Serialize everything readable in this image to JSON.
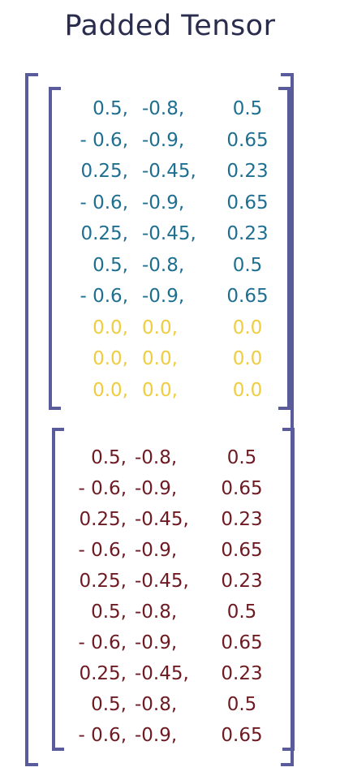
{
  "title": "Padded Tensor",
  "colors": {
    "bracket": "#5a5b9b",
    "title": "#2a2c4e",
    "tensor1_data": "#1f6f91",
    "padding": "#f0cc3f",
    "tensor2_data": "#6e1a22"
  },
  "tensor1": {
    "rows": [
      [
        "0.5,",
        "-0.8,",
        "0.5"
      ],
      [
        "- 0.6,",
        "-0.9,",
        "0.65"
      ],
      [
        "0.25,",
        "-0.45,",
        "0.23"
      ],
      [
        "- 0.6,",
        "-0.9,",
        "0.65"
      ],
      [
        "0.25,",
        "-0.45,",
        "0.23"
      ],
      [
        "0.5,",
        "-0.8,",
        "0.5"
      ],
      [
        "- 0.6,",
        "-0.9,",
        "0.65"
      ],
      [
        "0.0,",
        "0.0,",
        "0.0"
      ],
      [
        "0.0,",
        "0.0,",
        "0.0"
      ],
      [
        "0.0,",
        "0.0,",
        "0.0"
      ]
    ],
    "padding_rows_start": 7
  },
  "tensor2": {
    "rows": [
      [
        "0.5,",
        "-0.8,",
        "0.5"
      ],
      [
        "- 0.6,",
        "-0.9,",
        "0.65"
      ],
      [
        "0.25,",
        "-0.45,",
        "0.23"
      ],
      [
        "- 0.6,",
        "-0.9,",
        "0.65"
      ],
      [
        "0.25,",
        "-0.45,",
        "0.23"
      ],
      [
        "0.5,",
        "-0.8,",
        "0.5"
      ],
      [
        "- 0.6,",
        "-0.9,",
        "0.65"
      ],
      [
        "0.25,",
        "-0.45,",
        "0.23"
      ],
      [
        "0.5,",
        "-0.8,",
        "0.5"
      ],
      [
        "- 0.6,",
        "-0.9,",
        "0.65"
      ]
    ]
  }
}
